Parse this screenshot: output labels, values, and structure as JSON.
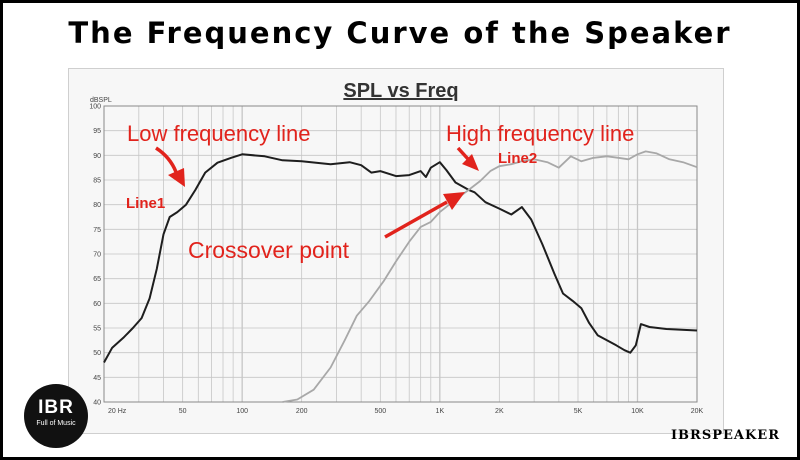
{
  "header": {
    "title": "The Frequency Curve of the Speaker"
  },
  "branding": {
    "logo_text": "IBR",
    "tagline": "Full of Music",
    "watermark": "IBRSPEAKER"
  },
  "colors": {
    "background": "#ffffff",
    "annotation": "#e1231c",
    "line1": "#1e1e1e",
    "line2": "#a8a8a8",
    "grid": "#c6c6c6",
    "panel": "#f7f7f7"
  },
  "chart_data": {
    "type": "line",
    "title": "SPL vs Freq",
    "ylabel": "dBSPL",
    "xlabel": "",
    "x_scale": "log",
    "xlim": [
      20,
      20000
    ],
    "ylim": [
      40,
      100
    ],
    "grid": true,
    "x_ticks": [
      {
        "value": 20,
        "label": "20 Hz"
      },
      {
        "value": 50,
        "label": "50"
      },
      {
        "value": 100,
        "label": "100"
      },
      {
        "value": 200,
        "label": "200"
      },
      {
        "value": 500,
        "label": "500"
      },
      {
        "value": 1000,
        "label": "1K"
      },
      {
        "value": 2000,
        "label": "2K"
      },
      {
        "value": 5000,
        "label": "5K"
      },
      {
        "value": 10000,
        "label": "10K"
      },
      {
        "value": 20000,
        "label": "20K"
      }
    ],
    "y_ticks": [
      40,
      45,
      50,
      55,
      60,
      65,
      70,
      75,
      80,
      85,
      90,
      95,
      100
    ],
    "series": [
      {
        "name": "Line1",
        "color": "#1e1e1e",
        "points": [
          [
            20,
            48
          ],
          [
            22,
            51
          ],
          [
            25,
            53
          ],
          [
            28,
            55
          ],
          [
            31,
            57
          ],
          [
            34,
            61
          ],
          [
            37,
            67
          ],
          [
            40,
            74
          ],
          [
            43,
            77.5
          ],
          [
            47,
            78.5
          ],
          [
            52,
            80
          ],
          [
            58,
            83
          ],
          [
            65,
            86.5
          ],
          [
            75,
            88.5
          ],
          [
            88,
            89.5
          ],
          [
            100,
            90.2
          ],
          [
            130,
            89.8
          ],
          [
            160,
            89
          ],
          [
            200,
            88.8
          ],
          [
            280,
            88.2
          ],
          [
            350,
            88.6
          ],
          [
            400,
            88
          ],
          [
            450,
            86.5
          ],
          [
            500,
            86.8
          ],
          [
            600,
            85.8
          ],
          [
            700,
            86
          ],
          [
            800,
            86.8
          ],
          [
            850,
            85.6
          ],
          [
            900,
            87.5
          ],
          [
            1000,
            88.6
          ],
          [
            1080,
            87
          ],
          [
            1200,
            84.5
          ],
          [
            1400,
            83
          ],
          [
            1500,
            82.5
          ],
          [
            1700,
            80.5
          ],
          [
            2000,
            79.2
          ],
          [
            2300,
            78
          ],
          [
            2600,
            79.5
          ],
          [
            2900,
            77
          ],
          [
            3300,
            72
          ],
          [
            3800,
            66
          ],
          [
            4200,
            62
          ],
          [
            4700,
            60.5
          ],
          [
            5200,
            59
          ],
          [
            5700,
            56
          ],
          [
            6300,
            53.5
          ],
          [
            7000,
            52.5
          ],
          [
            7800,
            51.5
          ],
          [
            8600,
            50.5
          ],
          [
            9200,
            50
          ],
          [
            9800,
            51.5
          ],
          [
            10400,
            55.8
          ],
          [
            11500,
            55.2
          ],
          [
            14000,
            54.8
          ],
          [
            20000,
            54.5
          ]
        ]
      },
      {
        "name": "Line2",
        "color": "#a8a8a8",
        "points": [
          [
            160,
            40
          ],
          [
            190,
            40.5
          ],
          [
            230,
            42.5
          ],
          [
            280,
            47
          ],
          [
            330,
            52.5
          ],
          [
            380,
            57.5
          ],
          [
            440,
            60.5
          ],
          [
            520,
            64.5
          ],
          [
            600,
            68.5
          ],
          [
            700,
            72.5
          ],
          [
            800,
            75.5
          ],
          [
            900,
            76.5
          ],
          [
            1000,
            78.5
          ],
          [
            1200,
            81
          ],
          [
            1400,
            83
          ],
          [
            1600,
            84.8
          ],
          [
            1800,
            86.8
          ],
          [
            2000,
            87.8
          ],
          [
            2300,
            88.2
          ],
          [
            2600,
            88.8
          ],
          [
            3000,
            89.2
          ],
          [
            3500,
            88.6
          ],
          [
            4000,
            87.5
          ],
          [
            4600,
            89.8
          ],
          [
            5200,
            88.8
          ],
          [
            6000,
            89.5
          ],
          [
            7000,
            89.8
          ],
          [
            8000,
            89.5
          ],
          [
            9000,
            89.2
          ],
          [
            10000,
            90.2
          ],
          [
            11000,
            90.8
          ],
          [
            12500,
            90.4
          ],
          [
            14500,
            89.2
          ],
          [
            17000,
            88.6
          ],
          [
            20000,
            87.6
          ]
        ]
      }
    ],
    "annotations": [
      {
        "text": "Low frequency line"
      },
      {
        "text": "Line1"
      },
      {
        "text": "High frequency line"
      },
      {
        "text": "Line2"
      },
      {
        "text": "Crossover point"
      }
    ]
  }
}
